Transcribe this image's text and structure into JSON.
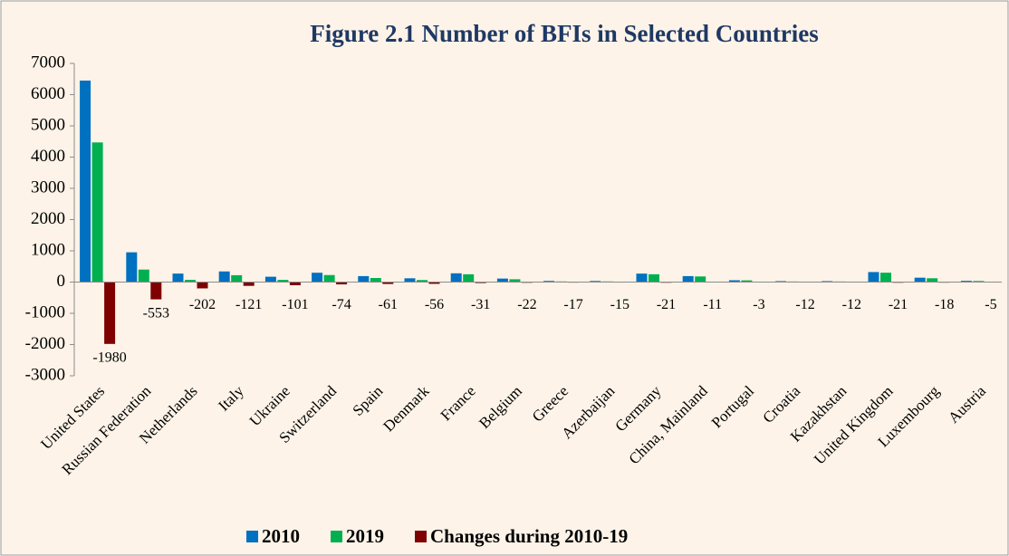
{
  "chart_data": {
    "type": "bar",
    "title": "Figure 2.1 Number of BFIs in Selected Countries",
    "categories": [
      "United States",
      "Russian Federation",
      "Netherlands",
      "Italy",
      "Ukraine",
      "Switzerland",
      "Spain",
      "Denmark",
      "France",
      "Belgium",
      "Greece",
      "Azerbaijan",
      "Germany",
      "China, Mainland",
      "Portugal",
      "Croatia",
      "Kazakhstan",
      "United Kingdom",
      "Luxembourg",
      "Austria"
    ],
    "series": [
      {
        "name": "2010",
        "color": "#0070c0",
        "values": [
          6450,
          953,
          272,
          341,
          171,
          299,
          191,
          121,
          281,
          112,
          37,
          35,
          271,
          191,
          58,
          30,
          30,
          321,
          140,
          40
        ]
      },
      {
        "name": "2019",
        "color": "#00b050",
        "values": [
          4470,
          400,
          70,
          220,
          70,
          225,
          130,
          65,
          250,
          90,
          20,
          20,
          250,
          180,
          55,
          18,
          18,
          300,
          122,
          35
        ]
      },
      {
        "name": "Changes during 2010-19",
        "color": "#7f0000",
        "values": [
          -1980,
          -553,
          -202,
          -121,
          -101,
          -74,
          -61,
          -56,
          -31,
          -22,
          -17,
          -15,
          -21,
          -11,
          -3,
          -12,
          -12,
          -21,
          -18,
          -5
        ],
        "data_labels": true
      }
    ],
    "ylim": [
      -3000,
      7000
    ],
    "yticks": [
      -3000,
      -2000,
      -1000,
      0,
      1000,
      2000,
      3000,
      4000,
      5000,
      6000,
      7000
    ],
    "grid": false,
    "legend": "bottom"
  }
}
